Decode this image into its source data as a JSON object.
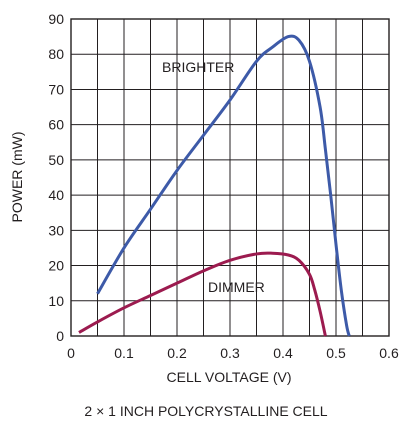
{
  "chart_data": {
    "type": "line",
    "title": "",
    "caption": "2 × 1 INCH POLYCRYSTALLINE CELL",
    "xlabel": "CELL VOLTAGE (V)",
    "ylabel": "POWER (mW)",
    "xlim": [
      0,
      0.6
    ],
    "ylim": [
      0,
      90
    ],
    "xticks": [
      0,
      0.1,
      0.2,
      0.3,
      0.4,
      0.5,
      0.6
    ],
    "xtick_labels": [
      "0",
      "0.1",
      "0.2",
      "0.3",
      "0.4",
      "0.5",
      "0.6"
    ],
    "yticks": [
      0,
      10,
      20,
      30,
      40,
      50,
      60,
      70,
      80,
      90
    ],
    "ytick_labels": [
      "0",
      "10",
      "20",
      "30",
      "40",
      "50",
      "60",
      "70",
      "80",
      "90"
    ],
    "grid": true,
    "series": [
      {
        "name": "BRIGHTER",
        "color": "#3d5aa8",
        "x": [
          0.05,
          0.1,
          0.15,
          0.2,
          0.25,
          0.3,
          0.35,
          0.38,
          0.41,
          0.43,
          0.45,
          0.47,
          0.48,
          0.49,
          0.5,
          0.51,
          0.52,
          0.525
        ],
        "y": [
          12,
          25,
          36,
          47,
          57,
          67,
          78,
          82,
          85,
          84,
          78,
          65,
          53,
          40,
          26,
          13,
          3,
          0
        ]
      },
      {
        "name": "DIMMER",
        "color": "#9c1b4f",
        "x": [
          0.015,
          0.05,
          0.1,
          0.15,
          0.2,
          0.25,
          0.3,
          0.35,
          0.38,
          0.41,
          0.43,
          0.45,
          0.46,
          0.47,
          0.48
        ],
        "y": [
          1,
          4,
          8,
          11.5,
          15,
          18.5,
          21.5,
          23.3,
          23.5,
          23,
          21.5,
          17.5,
          13,
          7,
          0
        ]
      }
    ]
  }
}
